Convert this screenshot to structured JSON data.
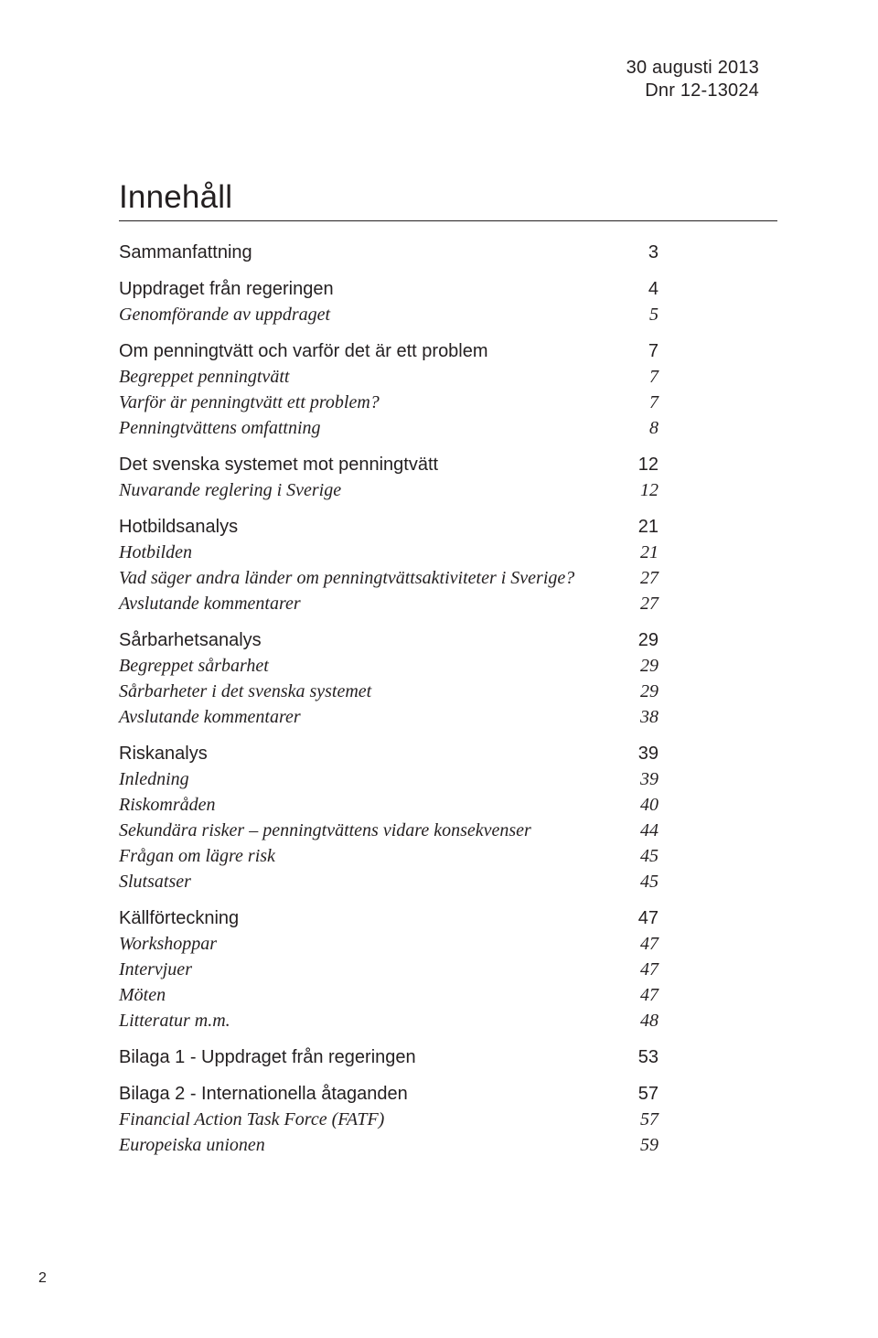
{
  "header": {
    "line1": "30 augusti 2013",
    "line2": "Dnr 12-13024"
  },
  "title": "Innehåll",
  "footer_page": "2",
  "toc": [
    {
      "type": "group",
      "items": [
        {
          "style": "sec",
          "label": "Sammanfattning",
          "page": "3"
        }
      ]
    },
    {
      "type": "group",
      "items": [
        {
          "style": "sec",
          "label": "Uppdraget från regeringen",
          "page": "4"
        },
        {
          "style": "sub",
          "label": "Genomförande av uppdraget",
          "page": "5"
        }
      ]
    },
    {
      "type": "group",
      "items": [
        {
          "style": "sec",
          "label": "Om penningtvätt och varför det är ett problem",
          "page": "7"
        },
        {
          "style": "sub",
          "label": "Begreppet penningtvätt",
          "page": "7"
        },
        {
          "style": "sub",
          "label": "Varför är penningtvätt ett problem?",
          "page": "7"
        },
        {
          "style": "sub",
          "label": "Penningtvättens omfattning",
          "page": "8"
        }
      ]
    },
    {
      "type": "group",
      "items": [
        {
          "style": "sec",
          "label": "Det svenska systemet mot penningtvätt",
          "page": "12"
        },
        {
          "style": "sub",
          "label": "Nuvarande reglering i Sverige",
          "page": "12"
        }
      ]
    },
    {
      "type": "group",
      "items": [
        {
          "style": "sec",
          "label": "Hotbildsanalys",
          "page": "21"
        },
        {
          "style": "sub",
          "label": "Hotbilden",
          "page": "21"
        },
        {
          "style": "sub",
          "label": "Vad säger andra länder om penningtvättsaktiviteter i Sverige?",
          "page": "27"
        },
        {
          "style": "sub",
          "label": "Avslutande kommentarer",
          "page": "27"
        }
      ]
    },
    {
      "type": "group",
      "items": [
        {
          "style": "sec",
          "label": "Sårbarhetsanalys",
          "page": "29"
        },
        {
          "style": "sub",
          "label": "Begreppet sårbarhet",
          "page": "29"
        },
        {
          "style": "sub",
          "label": "Sårbarheter i det svenska systemet",
          "page": "29"
        },
        {
          "style": "sub",
          "label": "Avslutande kommentarer",
          "page": "38"
        }
      ]
    },
    {
      "type": "group",
      "items": [
        {
          "style": "sec",
          "label": "Riskanalys",
          "page": "39"
        },
        {
          "style": "sub",
          "label": "Inledning",
          "page": "39"
        },
        {
          "style": "sub",
          "label": "Riskområden",
          "page": "40"
        },
        {
          "style": "sub",
          "label": "Sekundära risker – penningtvättens vidare konsekvenser",
          "page": "44"
        },
        {
          "style": "sub",
          "label": "Frågan om lägre risk",
          "page": "45"
        },
        {
          "style": "sub",
          "label": "Slutsatser",
          "page": "45"
        }
      ]
    },
    {
      "type": "group",
      "items": [
        {
          "style": "sec",
          "label": "Källförteckning",
          "page": "47"
        },
        {
          "style": "sub",
          "label": "Workshoppar",
          "page": "47"
        },
        {
          "style": "sub",
          "label": "Intervjuer",
          "page": "47"
        },
        {
          "style": "sub",
          "label": "Möten",
          "page": "47"
        },
        {
          "style": "sub",
          "label": "Litteratur m.m.",
          "page": "48"
        }
      ]
    },
    {
      "type": "group",
      "items": [
        {
          "style": "sec",
          "label": "Bilaga 1 - Uppdraget från regeringen",
          "page": "53"
        }
      ]
    },
    {
      "type": "group",
      "items": [
        {
          "style": "sec",
          "label": "Bilaga 2 - Internationella åtaganden",
          "page": "57"
        },
        {
          "style": "sub",
          "label": "Financial Action Task Force (FATF)",
          "page": "57"
        },
        {
          "style": "sub",
          "label": "Europeiska unionen",
          "page": "59"
        }
      ]
    }
  ]
}
